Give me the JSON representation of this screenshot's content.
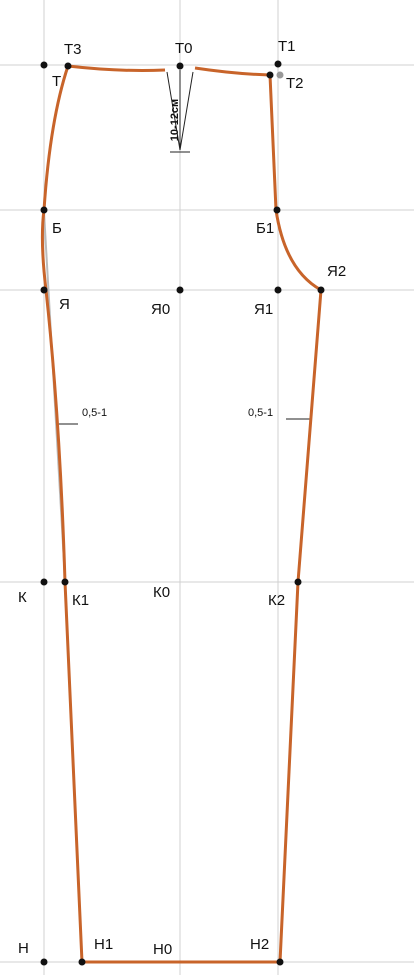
{
  "points": [
    {
      "label": "Т"
    },
    {
      "label": "Т3"
    },
    {
      "label": "Т0"
    },
    {
      "label": "Т1"
    },
    {
      "label": "Т2"
    },
    {
      "label": "Б"
    },
    {
      "label": "Б1"
    },
    {
      "label": "Я2"
    },
    {
      "label": "Я"
    },
    {
      "label": "Я0"
    },
    {
      "label": "Я1"
    },
    {
      "label": "К"
    },
    {
      "label": "К1"
    },
    {
      "label": "К0"
    },
    {
      "label": "К2"
    },
    {
      "label": "Н"
    },
    {
      "label": "Н1"
    },
    {
      "label": "Н0"
    },
    {
      "label": "Н2"
    }
  ],
  "annotations": {
    "dart": "10-12см",
    "left_offset": "0,5-1",
    "right_offset": "0,5-1"
  }
}
